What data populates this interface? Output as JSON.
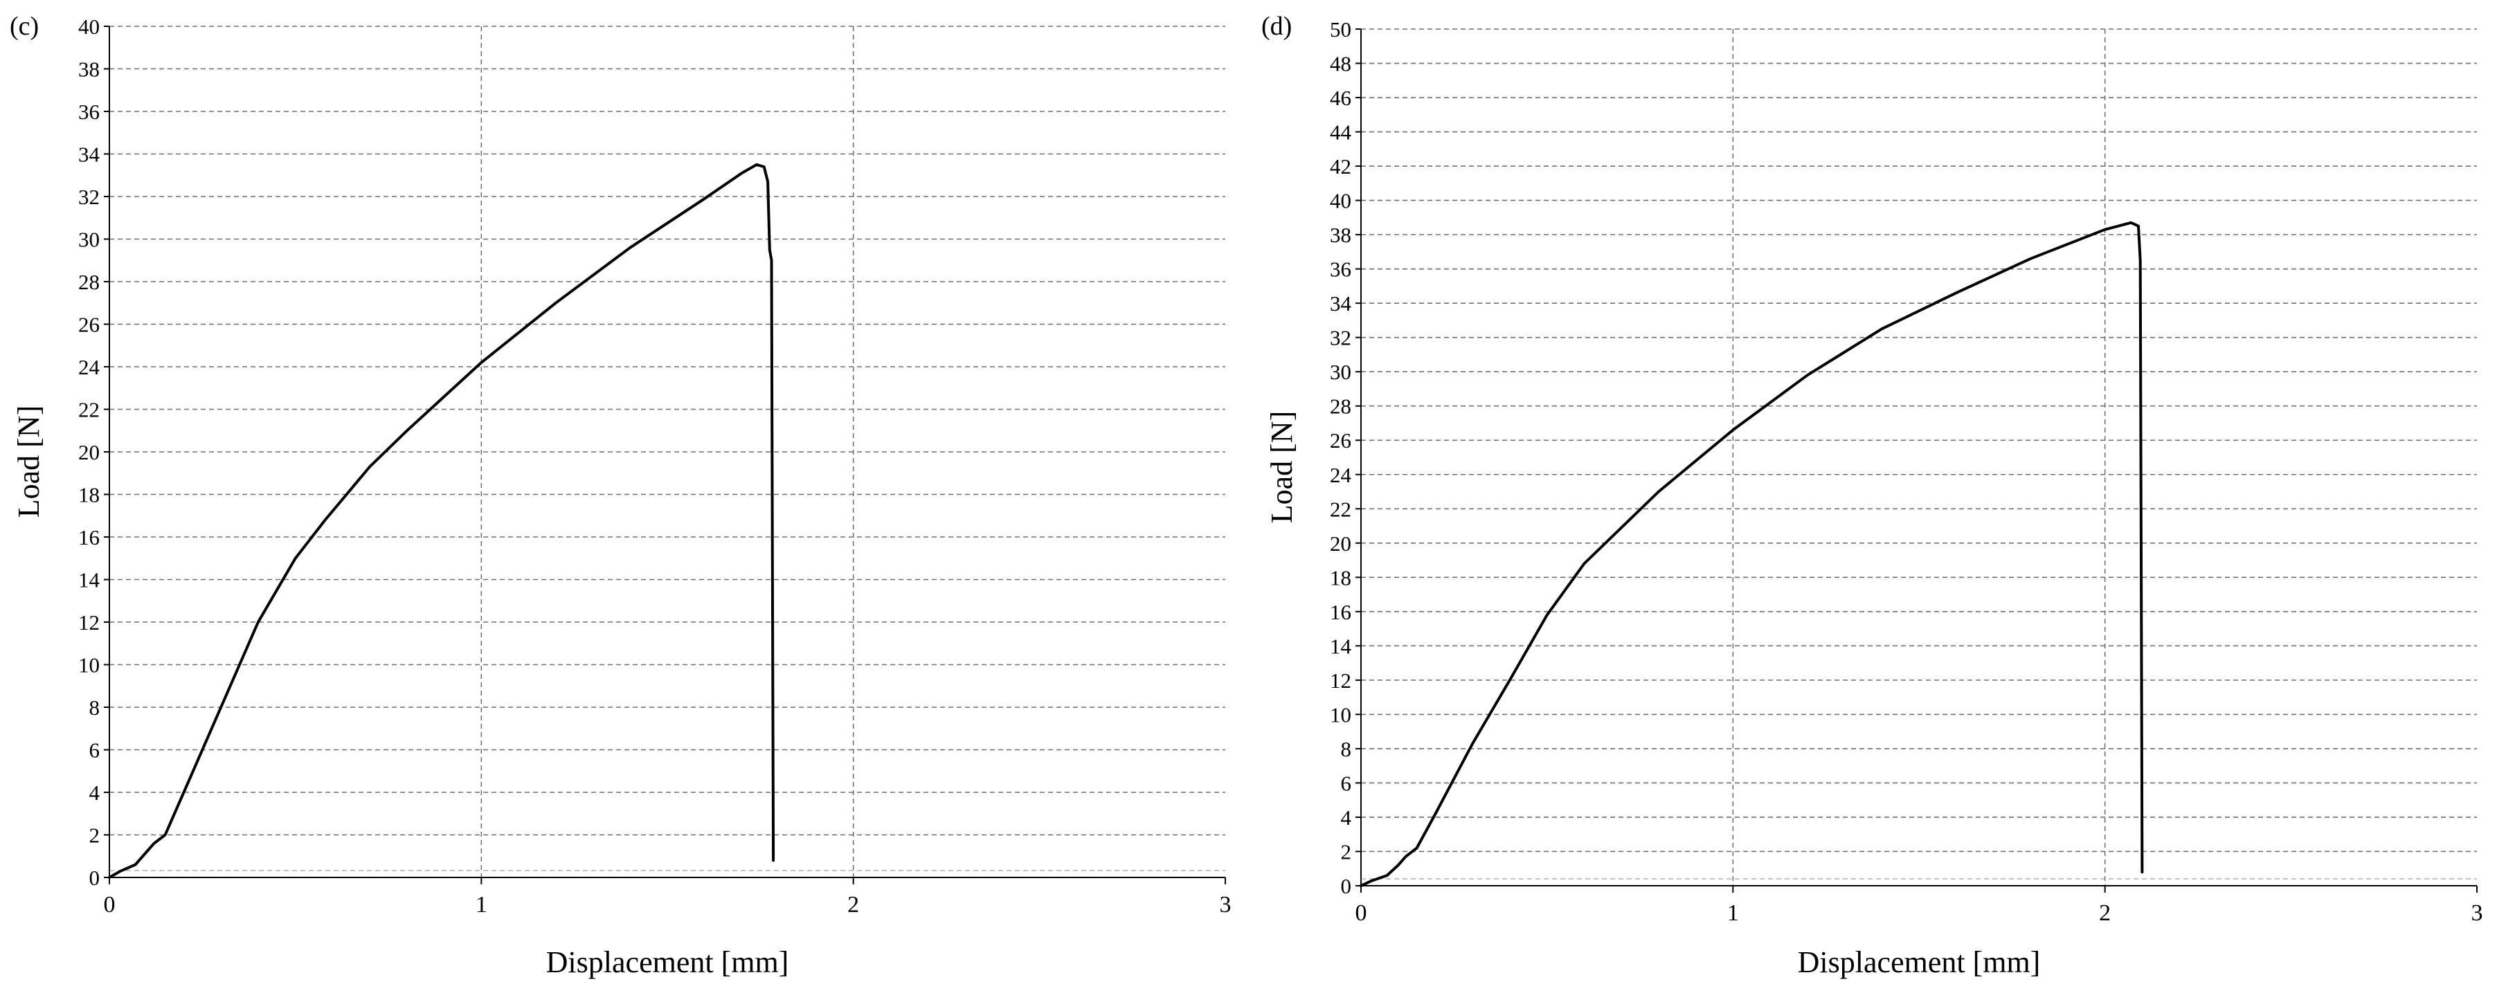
{
  "chart_data": [
    {
      "panel_label": "(c)",
      "type": "line",
      "xlabel": "Displacement [mm]",
      "ylabel": "Load [N]",
      "xlim": [
        0,
        3
      ],
      "ylim": [
        0,
        40
      ],
      "x_ticks": [
        0,
        1,
        2,
        3
      ],
      "y_ticks": [
        0,
        2,
        4,
        6,
        8,
        10,
        12,
        14,
        16,
        18,
        20,
        22,
        24,
        26,
        28,
        30,
        32,
        34,
        36,
        38,
        40
      ],
      "grid": true,
      "legend": "none",
      "series": [
        {
          "color": "#000000",
          "points": [
            [
              0,
              0
            ],
            [
              0.03,
              0.3
            ],
            [
              0.07,
              0.6
            ],
            [
              0.1,
              1.2
            ],
            [
              0.12,
              1.6
            ],
            [
              0.15,
              2.0
            ],
            [
              0.2,
              4.0
            ],
            [
              0.3,
              8.0
            ],
            [
              0.4,
              12.0
            ],
            [
              0.5,
              15.0
            ],
            [
              0.58,
              16.8
            ],
            [
              0.7,
              19.3
            ],
            [
              0.8,
              21.0
            ],
            [
              1.0,
              24.2
            ],
            [
              1.2,
              27.0
            ],
            [
              1.4,
              29.6
            ],
            [
              1.6,
              31.9
            ],
            [
              1.7,
              33.1
            ],
            [
              1.74,
              33.5
            ],
            [
              1.76,
              33.4
            ],
            [
              1.77,
              32.7
            ],
            [
              1.775,
              29.5
            ],
            [
              1.78,
              29.0
            ],
            [
              1.785,
              0.8
            ]
          ]
        }
      ]
    },
    {
      "panel_label": "(d)",
      "type": "line",
      "xlabel": "Displacement [mm]",
      "ylabel": "Load [N]",
      "xlim": [
        0,
        3
      ],
      "ylim": [
        0,
        50
      ],
      "x_ticks": [
        0,
        1,
        2,
        3
      ],
      "y_ticks": [
        0,
        2,
        4,
        6,
        8,
        10,
        12,
        14,
        16,
        18,
        20,
        22,
        24,
        26,
        28,
        30,
        32,
        34,
        36,
        38,
        40,
        42,
        44,
        46,
        48,
        50
      ],
      "grid": true,
      "legend": "none",
      "series": [
        {
          "color": "#000000",
          "points": [
            [
              0,
              0
            ],
            [
              0.03,
              0.3
            ],
            [
              0.07,
              0.6
            ],
            [
              0.1,
              1.2
            ],
            [
              0.12,
              1.7
            ],
            [
              0.15,
              2.2
            ],
            [
              0.2,
              4.2
            ],
            [
              0.3,
              8.3
            ],
            [
              0.4,
              12.0
            ],
            [
              0.5,
              15.8
            ],
            [
              0.6,
              18.8
            ],
            [
              0.8,
              23.0
            ],
            [
              1.0,
              26.6
            ],
            [
              1.2,
              29.8
            ],
            [
              1.4,
              32.5
            ],
            [
              1.6,
              34.6
            ],
            [
              1.8,
              36.6
            ],
            [
              2.0,
              38.3
            ],
            [
              2.07,
              38.7
            ],
            [
              2.09,
              38.5
            ],
            [
              2.095,
              36.5
            ],
            [
              2.1,
              0.8
            ]
          ]
        }
      ]
    }
  ]
}
